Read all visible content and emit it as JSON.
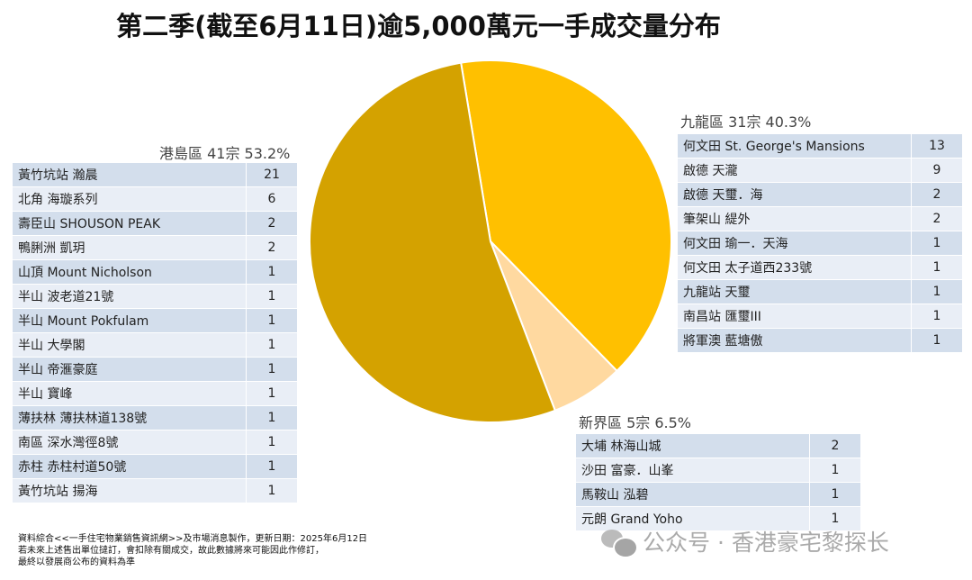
{
  "title": "第二季(截至6月11日)逾5,000萬元一手成交量分布",
  "chart_data": {
    "type": "pie",
    "title": "第二季(截至6月11日)逾5,000萬元一手成交量分布",
    "slices": [
      {
        "label": "九龍區 31宗 40.3%",
        "value": 31,
        "percent": 40.3,
        "color": "#FFC000"
      },
      {
        "label": "新界區 5宗 6.5%",
        "value": 5,
        "percent": 6.5,
        "color": "#FFD9A0"
      },
      {
        "label": "港島區 41宗 53.2%",
        "value": 41,
        "percent": 53.2,
        "color": "#D4A200"
      }
    ]
  },
  "groups": {
    "hk": {
      "title": "港島區 41宗 53.2%",
      "rows": [
        [
          "黃竹坑站 瀚晨",
          "21"
        ],
        [
          "北角 海璇系列",
          "6"
        ],
        [
          "壽臣山 SHOUSON PEAK",
          "2"
        ],
        [
          "鴨脷洲 凱玥",
          "2"
        ],
        [
          "山頂 Mount Nicholson",
          "1"
        ],
        [
          "半山 波老道21號",
          "1"
        ],
        [
          "半山 Mount Pokfulam",
          "1"
        ],
        [
          "半山 大學閣",
          "1"
        ],
        [
          "半山 帝滙豪庭",
          "1"
        ],
        [
          "半山 寶峰",
          "1"
        ],
        [
          "薄扶林 薄扶林道138號",
          "1"
        ],
        [
          "南區 深水灣徑8號",
          "1"
        ],
        [
          "赤柱 赤柱村道50號",
          "1"
        ],
        [
          "黃竹坑站 揚海",
          "1"
        ]
      ]
    },
    "kln": {
      "title": "九龍區 31宗 40.3%",
      "rows": [
        [
          "何文田 St. George's Mansions",
          "13"
        ],
        [
          "啟德 天瀧",
          "9"
        ],
        [
          "啟德 天璽．海",
          "2"
        ],
        [
          "筆架山 緹外",
          "2"
        ],
        [
          "何文田 瑜一．天海",
          "1"
        ],
        [
          "何文田 太子道西233號",
          "1"
        ],
        [
          "九龍站 天璽",
          "1"
        ],
        [
          "南昌站 匯璽III",
          "1"
        ],
        [
          "將軍澳 藍塘傲",
          "1"
        ]
      ]
    },
    "nt": {
      "title": "新界區 5宗 6.5%",
      "rows": [
        [
          "大埔 林海山城",
          "2"
        ],
        [
          "沙田 富豪．山峯",
          "1"
        ],
        [
          "馬鞍山 泓碧",
          "1"
        ],
        [
          "元朗 Grand Yoho",
          "1"
        ]
      ]
    }
  },
  "notes": [
    "資料綜合<<一手住宅物業銷售資訊網>>及市場消息製作，更新日期：2025年6月12日",
    "若未來上述售出單位撻訂，會扣除有關成交，故此數據將來可能因此作修訂，",
    "最終以發展商公布的資料為準"
  ],
  "watermark": "公众号 · 香港豪宅黎探长"
}
